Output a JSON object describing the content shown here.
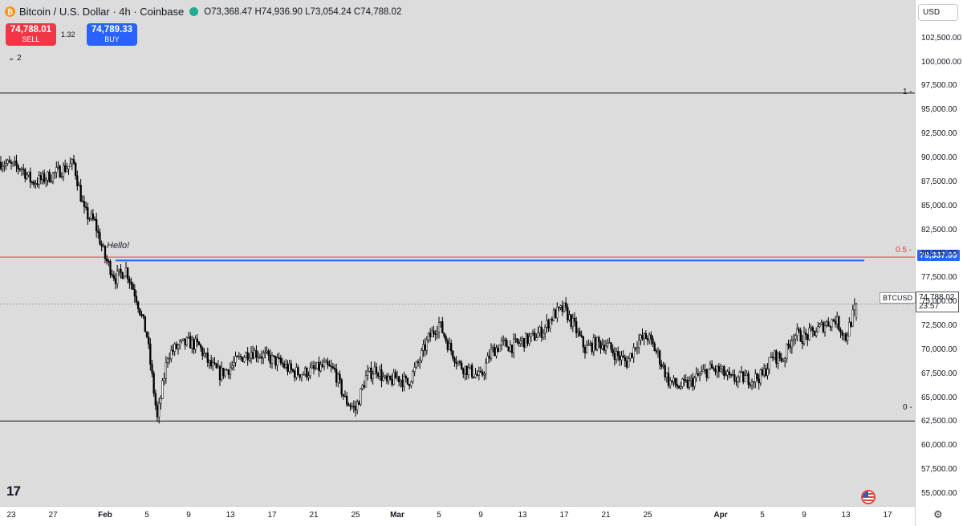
{
  "legend": {
    "coin_glyph": "₿",
    "symbol": "Bitcoin / U.S. Dollar · 4h · Coinbase",
    "ohlc": "O73,368.47 H74,936.90 L73,054.24 C74,788.02"
  },
  "trade": {
    "sell_price": "74,788.01",
    "sell_label": "SELL",
    "spread": "1.32",
    "buy_price": "74,789.33",
    "buy_label": "BUY",
    "sell_color": "#f23645",
    "buy_color": "#2962ff"
  },
  "indicators_collapse": "⌄ 2",
  "currency": "USD",
  "annotation": "Hello!",
  "levels": {
    "top_label": "1 -",
    "mid_label": "0.5 -",
    "bottom_label": "0 -"
  },
  "price_tags": {
    "blue": "79,337.99",
    "symbol": "BTCUSD",
    "current": "74,788.02",
    "countdown": "23:57"
  },
  "chart_data": {
    "type": "candlestick",
    "title": "Bitcoin / U.S. Dollar · 4h · Coinbase",
    "y_ticks": [
      "102,500.00",
      "100,000.00",
      "97,500.00",
      "95,000.00",
      "92,500.00",
      "90,000.00",
      "87,500.00",
      "85,000.00",
      "82,500.00",
      "80,000.00",
      "77,500.00",
      "75,000.00",
      "72,500.00",
      "70,000.00",
      "67,500.00",
      "65,000.00",
      "62,500.00",
      "60,000.00",
      "57,500.00",
      "55,000.00"
    ],
    "y_tick_values": [
      102500,
      100000,
      97500,
      95000,
      92500,
      90000,
      87500,
      85000,
      82500,
      80000,
      77500,
      75000,
      72500,
      70000,
      67500,
      65000,
      62500,
      60000,
      57500,
      55000
    ],
    "ylim": [
      53750,
      106500
    ],
    "x_ticks": [
      "23",
      "27",
      "Feb",
      "5",
      "9",
      "13",
      "17",
      "21",
      "25",
      "Mar",
      "5",
      "9",
      "13",
      "17",
      "21",
      "25",
      "Apr",
      "5",
      "9",
      "13",
      "17"
    ],
    "x_tick_dates": [
      "2026-01-23",
      "2026-01-27",
      "2026-02-01",
      "2026-02-05",
      "2026-02-09",
      "2026-02-13",
      "2026-02-17",
      "2026-02-21",
      "2026-02-25",
      "2026-03-01",
      "2026-03-05",
      "2026-03-09",
      "2026-03-13",
      "2026-03-17",
      "2026-03-21",
      "2026-03-25",
      "2026-04-01",
      "2026-04-05",
      "2026-04-09",
      "2026-04-13",
      "2026-04-17"
    ],
    "fib_levels": [
      {
        "label": "1",
        "price": 96800,
        "color": "#131722"
      },
      {
        "label": "0.5",
        "price": 79700,
        "color": "#f23645"
      },
      {
        "label": "0",
        "price": 62600,
        "color": "#131722"
      }
    ],
    "horizontal_line": {
      "price": 79337.99,
      "color": "#2962ff"
    },
    "current_price": 74788.02,
    "close_path": [
      [
        "2026-01-22",
        89600
      ],
      [
        "2026-01-23",
        89200
      ],
      [
        "2026-01-24",
        89000
      ],
      [
        "2026-01-25",
        87500
      ],
      [
        "2026-01-26",
        87800
      ],
      [
        "2026-01-27",
        88300
      ],
      [
        "2026-01-28",
        88900
      ],
      [
        "2026-01-29",
        89400
      ],
      [
        "2026-01-30",
        84400
      ],
      [
        "2026-01-31",
        83300
      ],
      [
        "2026-02-01",
        79600
      ],
      [
        "2026-02-02",
        77500
      ],
      [
        "2026-02-03",
        78400
      ],
      [
        "2026-02-04",
        75500
      ],
      [
        "2026-02-05",
        71500
      ],
      [
        "2026-02-06",
        62800
      ],
      [
        "2026-02-07",
        69500
      ],
      [
        "2026-02-08",
        70400
      ],
      [
        "2026-02-09",
        70800
      ],
      [
        "2026-02-10",
        70400
      ],
      [
        "2026-02-11",
        68500
      ],
      [
        "2026-02-12",
        67500
      ],
      [
        "2026-02-13",
        68200
      ],
      [
        "2026-02-14",
        69200
      ],
      [
        "2026-02-15",
        69900
      ],
      [
        "2026-02-16",
        69500
      ],
      [
        "2026-02-17",
        69000
      ],
      [
        "2026-02-18",
        68500
      ],
      [
        "2026-02-19",
        67700
      ],
      [
        "2026-02-20",
        67600
      ],
      [
        "2026-02-21",
        67900
      ],
      [
        "2026-02-22",
        68300
      ],
      [
        "2026-02-23",
        67800
      ],
      [
        "2026-02-24",
        64800
      ],
      [
        "2026-02-25",
        63800
      ],
      [
        "2026-02-26",
        67200
      ],
      [
        "2026-02-27",
        68100
      ],
      [
        "2026-02-28",
        66500
      ],
      [
        "2026-03-01",
        67200
      ],
      [
        "2026-03-02",
        66500
      ],
      [
        "2026-03-03",
        68600
      ],
      [
        "2026-03-04",
        71200
      ],
      [
        "2026-03-05",
        72800
      ],
      [
        "2026-03-06",
        70300
      ],
      [
        "2026-03-07",
        68400
      ],
      [
        "2026-03-08",
        67800
      ],
      [
        "2026-03-09",
        67100
      ],
      [
        "2026-03-10",
        69800
      ],
      [
        "2026-03-11",
        70600
      ],
      [
        "2026-03-12",
        70400
      ],
      [
        "2026-03-13",
        70900
      ],
      [
        "2026-03-14",
        71300
      ],
      [
        "2026-03-15",
        72100
      ],
      [
        "2026-03-16",
        73700
      ],
      [
        "2026-03-17",
        74300
      ],
      [
        "2026-03-18",
        72400
      ],
      [
        "2026-03-19",
        70100
      ],
      [
        "2026-03-20",
        70700
      ],
      [
        "2026-03-21",
        70600
      ],
      [
        "2026-03-22",
        69500
      ],
      [
        "2026-03-23",
        68700
      ],
      [
        "2026-03-24",
        70900
      ],
      [
        "2026-03-25",
        71400
      ],
      [
        "2026-03-26",
        69500
      ],
      [
        "2026-03-27",
        66800
      ],
      [
        "2026-03-28",
        66200
      ],
      [
        "2026-03-29",
        66500
      ],
      [
        "2026-03-30",
        67400
      ],
      [
        "2026-03-31",
        68000
      ],
      [
        "2026-04-01",
        67800
      ],
      [
        "2026-04-02",
        66900
      ],
      [
        "2026-04-03",
        67100
      ],
      [
        "2026-04-04",
        67000
      ],
      [
        "2026-04-05",
        67300
      ],
      [
        "2026-04-06",
        69400
      ],
      [
        "2026-04-07",
        69100
      ],
      [
        "2026-04-08",
        71700
      ],
      [
        "2026-04-09",
        71300
      ],
      [
        "2026-04-10",
        71900
      ],
      [
        "2026-04-11",
        72700
      ],
      [
        "2026-04-12",
        73200
      ],
      [
        "2026-04-13",
        71300
      ],
      [
        "2026-04-14",
        74788
      ]
    ]
  }
}
